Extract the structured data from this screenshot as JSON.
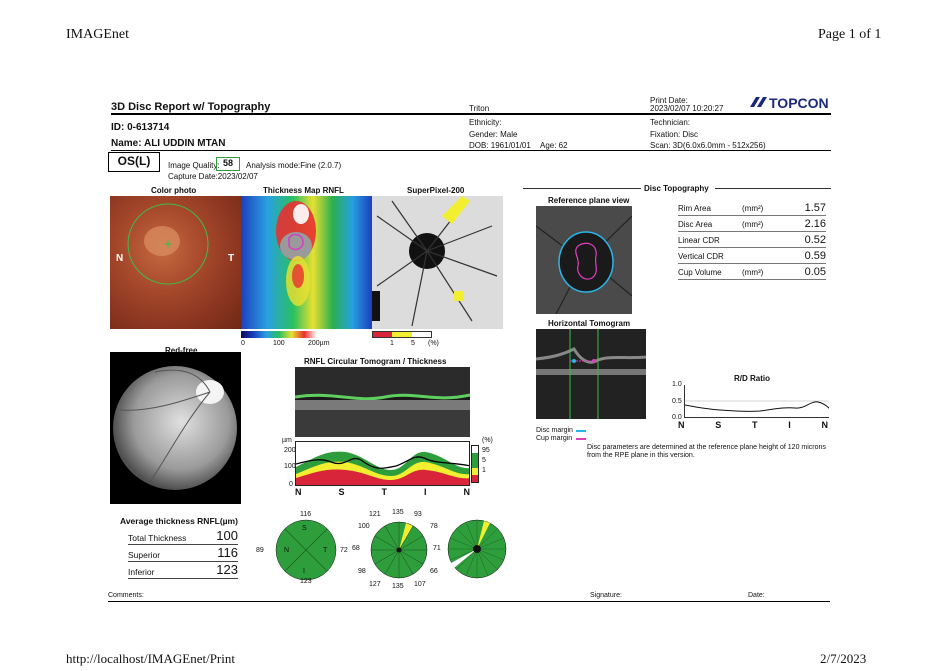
{
  "browser": {
    "app_title": "IMAGEnet",
    "page_indicator": "Page 1 of 1",
    "footer_url": "http://localhost/IMAGEnet/Print",
    "footer_date": "2/7/2023"
  },
  "report": {
    "title": "3D Disc Report w/ Topography",
    "device": "Triton",
    "print_date_label": "Print Date:",
    "print_date": "2023/02/07 10:20:27",
    "brand": "TOPCON",
    "id_line": "ID: 0-613714",
    "name_line": "Name: ALI UDDIN MTAN",
    "ethnicity": "Ethnicity:",
    "gender": "Gender: Male",
    "dob": "DOB: 1961/01/01",
    "age": "Age: 62",
    "technician": "Technician:",
    "fixation": "Fixation: Disc",
    "scan": "Scan: 3D(6.0x6.0mm - 512x256)",
    "eye": "OS(L)",
    "image_quality_label": "Image Quality:",
    "image_quality": "58",
    "analysis_mode": "Analysis mode:Fine (2.0.7)",
    "capture_date": "Capture Date:2023/02/07"
  },
  "panels": {
    "color_photo": "Color photo",
    "thickness_map": "Thickness Map RNFL",
    "superpixel": "SuperPixel-200",
    "red_free": "Red-free",
    "rnfl_circ": "RNFL Circular Tomogram / Thickness",
    "disc_topography": "Disc Topography",
    "reference_plane": "Reference plane view",
    "horizontal_tomogram": "Horizontal Tomogram",
    "rd_ratio": "R/D Ratio",
    "n_label": "N",
    "t_label": "T"
  },
  "thickness_scale": {
    "t0": "0",
    "t100": "100",
    "t200": "200µm"
  },
  "superpixel_scale": {
    "t1": "1",
    "t5": "5",
    "unit": "(%)"
  },
  "disc_params": [
    {
      "label": "Rim Area",
      "unit": "(mm²)",
      "value": "1.57"
    },
    {
      "label": "Disc Area",
      "unit": "(mm²)",
      "value": "2.16"
    },
    {
      "label": "Linear CDR",
      "unit": "",
      "value": "0.52"
    },
    {
      "label": "Vertical CDR",
      "unit": "",
      "value": "0.59"
    },
    {
      "label": "Cup Volume",
      "unit": "(mm³)",
      "value": "0.05"
    }
  ],
  "rd_axis": {
    "y1": "1.0",
    "y05": "0.5",
    "y0": "0.0",
    "x": [
      "N",
      "S",
      "T",
      "I",
      "N"
    ]
  },
  "margins": {
    "disc": "Disc margin",
    "cup": "Cup margin"
  },
  "disc_note": "Disc parameters are determined at the reference plane height of 120 microns from the RPE plane in this version.",
  "circ_chart": {
    "unit": "µm",
    "y200": "200",
    "y100": "100",
    "y0": "0",
    "x": [
      "N",
      "S",
      "T",
      "I",
      "N"
    ],
    "pct": "(%)",
    "p95": "95",
    "p5": "5",
    "p1": "1"
  },
  "avg_thickness": {
    "title": "Average thickness RNFL(µm)",
    "rows": [
      {
        "label": "Total Thickness",
        "value": "100"
      },
      {
        "label": "Superior",
        "value": "116"
      },
      {
        "label": "Inferior",
        "value": "123"
      }
    ]
  },
  "quadrant": {
    "s": "116",
    "n": "89",
    "t": "72",
    "i": "123",
    "S": "S",
    "N": "N",
    "T": "T",
    "I": "I"
  },
  "clock": {
    "c121": "121",
    "c135a": "135",
    "c93": "93",
    "c100": "100",
    "c78": "78",
    "c68": "68",
    "c71": "71",
    "c98": "98",
    "c66": "66",
    "c127": "127",
    "c135b": "135",
    "c107": "107"
  },
  "footer_fields": {
    "comments": "Comments:",
    "signature": "Signature:",
    "date": "Date:"
  },
  "colors": {
    "green": "#2e9e3c",
    "yellow": "#f2ef30",
    "red": "#d8253a",
    "cyan": "#29b6e8",
    "magenta": "#e040c0"
  }
}
